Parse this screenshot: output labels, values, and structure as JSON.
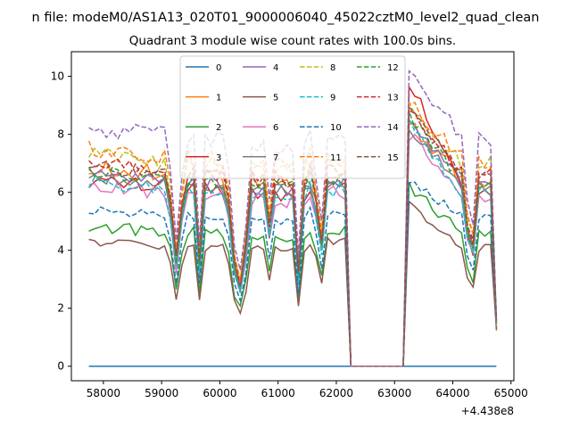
{
  "chart_data": {
    "type": "line",
    "suptitle": "n file: modeM0/AS1A13_020T01_9000006040_45022cztM0_level2_quad_clean",
    "title": "Quadrant 3 module wise count rates with 100.0s bins.",
    "xlabel": "",
    "ylabel": "",
    "x_offset_label": "+4.438e8",
    "xlim": [
      57450,
      65050
    ],
    "ylim": [
      -0.5,
      10.85
    ],
    "x_ticks": [
      58000,
      59000,
      60000,
      61000,
      62000,
      63000,
      64000,
      65000
    ],
    "x_tick_labels": [
      "58000",
      "59000",
      "60000",
      "61000",
      "62000",
      "63000",
      "64000",
      "65000"
    ],
    "y_ticks": [
      0,
      2,
      4,
      6,
      8,
      10
    ],
    "y_tick_labels": [
      "0",
      "2",
      "4",
      "6",
      "8",
      "10"
    ],
    "grid": false,
    "legend": {
      "placement": "top-center",
      "columns": 4
    },
    "x_start": 57750,
    "x_step": 100,
    "gap_range": [
      62250,
      63150
    ],
    "series": [
      {
        "name": "0",
        "color": "#1f77b4",
        "dash": "solid",
        "base": 0.0,
        "peak": 0.0,
        "noise": 0.0
      },
      {
        "name": "1",
        "color": "#ff7f0e",
        "dash": "solid",
        "base": 6.8,
        "peak": 8.3,
        "noise": 0.35
      },
      {
        "name": "2",
        "color": "#2ca02c",
        "dash": "solid",
        "base": 4.8,
        "peak": 6.2,
        "noise": 0.2
      },
      {
        "name": "3",
        "color": "#d62728",
        "dash": "solid",
        "base": 6.4,
        "peak": 9.8,
        "noise": 0.25
      },
      {
        "name": "4",
        "color": "#9467bd",
        "dash": "solid",
        "base": 6.6,
        "peak": 8.5,
        "noise": 0.25
      },
      {
        "name": "5",
        "color": "#8c564b",
        "dash": "solid",
        "base": 4.3,
        "peak": 5.6,
        "noise": 0.15
      },
      {
        "name": "6",
        "color": "#e377c2",
        "dash": "solid",
        "base": 6.2,
        "peak": 8.0,
        "noise": 0.25
      },
      {
        "name": "7",
        "color": "#7f7f7f",
        "dash": "solid",
        "base": 6.5,
        "peak": 8.2,
        "noise": 0.2
      },
      {
        "name": "8",
        "color": "#bcbd22",
        "dash": "dashed",
        "base": 7.3,
        "peak": 9.0,
        "noise": 0.3
      },
      {
        "name": "9",
        "color": "#17becf",
        "dash": "dashed",
        "base": 6.3,
        "peak": 8.3,
        "noise": 0.25
      },
      {
        "name": "10",
        "color": "#1f77b4",
        "dash": "dashed",
        "base": 5.4,
        "peak": 6.4,
        "noise": 0.15
      },
      {
        "name": "11",
        "color": "#ff7f0e",
        "dash": "dashed",
        "base": 7.5,
        "peak": 9.0,
        "noise": 0.3
      },
      {
        "name": "12",
        "color": "#2ca02c",
        "dash": "dashed",
        "base": 6.7,
        "peak": 8.6,
        "noise": 0.25
      },
      {
        "name": "13",
        "color": "#d62728",
        "dash": "dashed",
        "base": 7.0,
        "peak": 9.0,
        "noise": 0.25
      },
      {
        "name": "14",
        "color": "#9467bd",
        "dash": "dashed",
        "base": 8.2,
        "peak": 10.2,
        "noise": 0.3
      },
      {
        "name": "15",
        "color": "#8c564b",
        "dash": "dashed",
        "base": 6.9,
        "peak": 8.8,
        "noise": 0.25
      }
    ],
    "dip_profile": [
      {
        "x": 59150,
        "f": 0.85
      },
      {
        "x": 59250,
        "f": 0.55
      },
      {
        "x": 59350,
        "f": 0.85
      },
      {
        "x": 59650,
        "f": 0.55
      },
      {
        "x": 60150,
        "f": 0.9
      },
      {
        "x": 60250,
        "f": 0.55
      },
      {
        "x": 60350,
        "f": 0.38
      },
      {
        "x": 60450,
        "f": 0.65
      },
      {
        "x": 60850,
        "f": 0.75
      },
      {
        "x": 61350,
        "f": 0.45
      },
      {
        "x": 61750,
        "f": 0.65
      },
      {
        "x": 61650,
        "f": 0.85
      },
      {
        "x": 64250,
        "f": 0.75
      },
      {
        "x": 64350,
        "f": 0.65
      },
      {
        "x": 64750,
        "f": 0.2
      }
    ]
  }
}
